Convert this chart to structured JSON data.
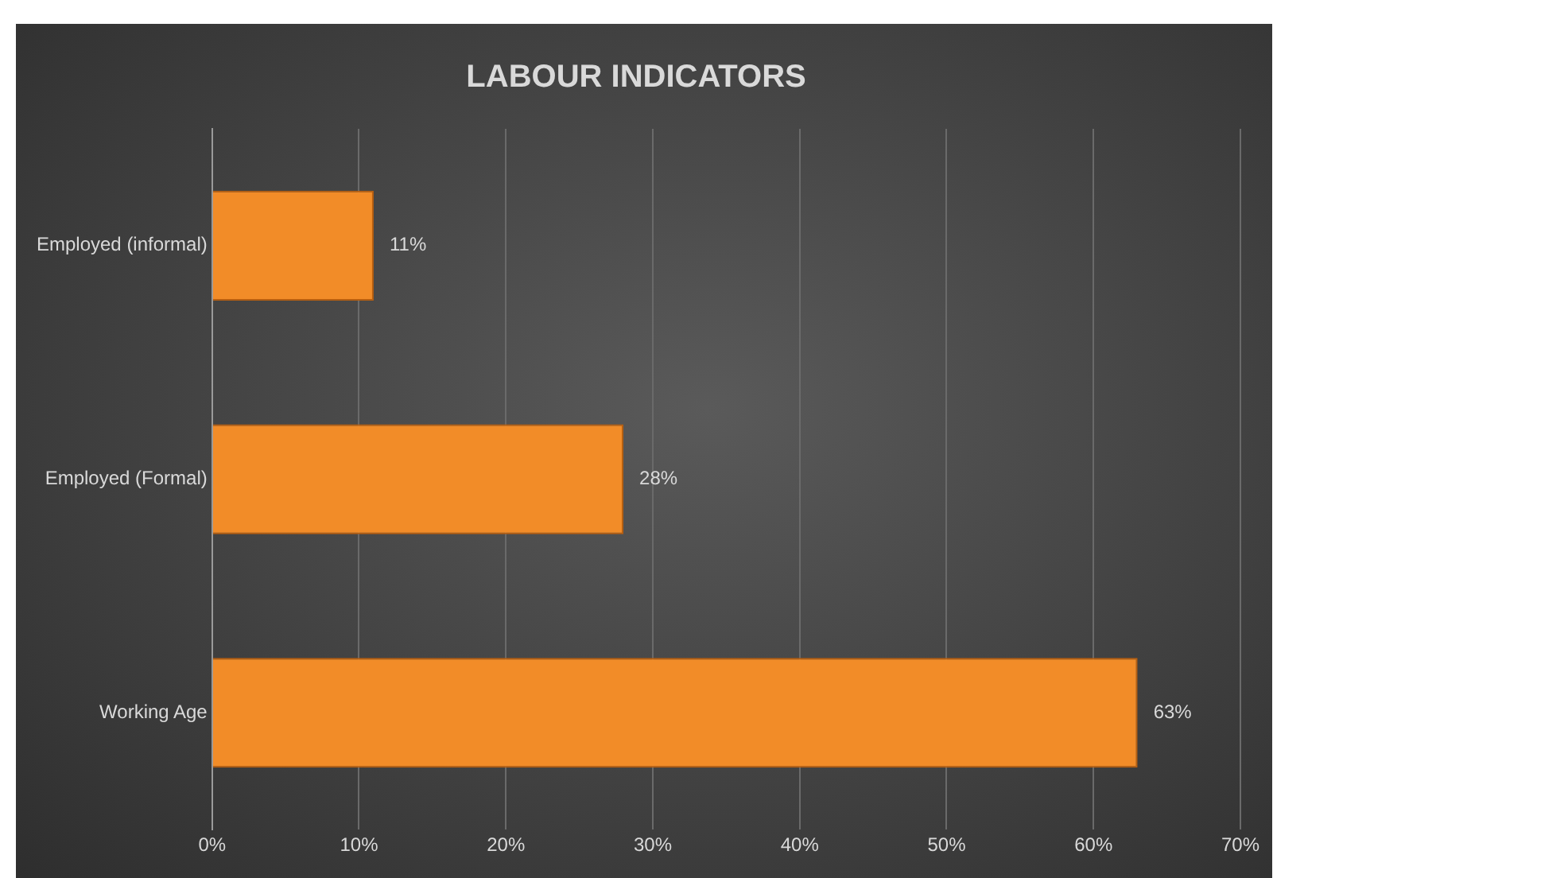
{
  "chart_data": {
    "type": "bar",
    "orientation": "horizontal",
    "title": "LABOUR INDICATORS",
    "categories": [
      "Employed (informal)",
      "Employed (Formal)",
      "Working Age"
    ],
    "values": [
      11,
      28,
      63
    ],
    "value_labels": [
      "11%",
      "28%",
      "63%"
    ],
    "color": "#f28c28",
    "xlim": [
      0,
      70
    ],
    "xticks": [
      {
        "value": 0,
        "label": "0%"
      },
      {
        "value": 10,
        "label": "10%"
      },
      {
        "value": 20,
        "label": "20%"
      },
      {
        "value": 30,
        "label": "30%"
      },
      {
        "value": 40,
        "label": "40%"
      },
      {
        "value": 50,
        "label": "50%"
      },
      {
        "value": 60,
        "label": "60%"
      },
      {
        "value": 70,
        "label": "70%"
      }
    ],
    "grid": "x",
    "legend": false
  }
}
